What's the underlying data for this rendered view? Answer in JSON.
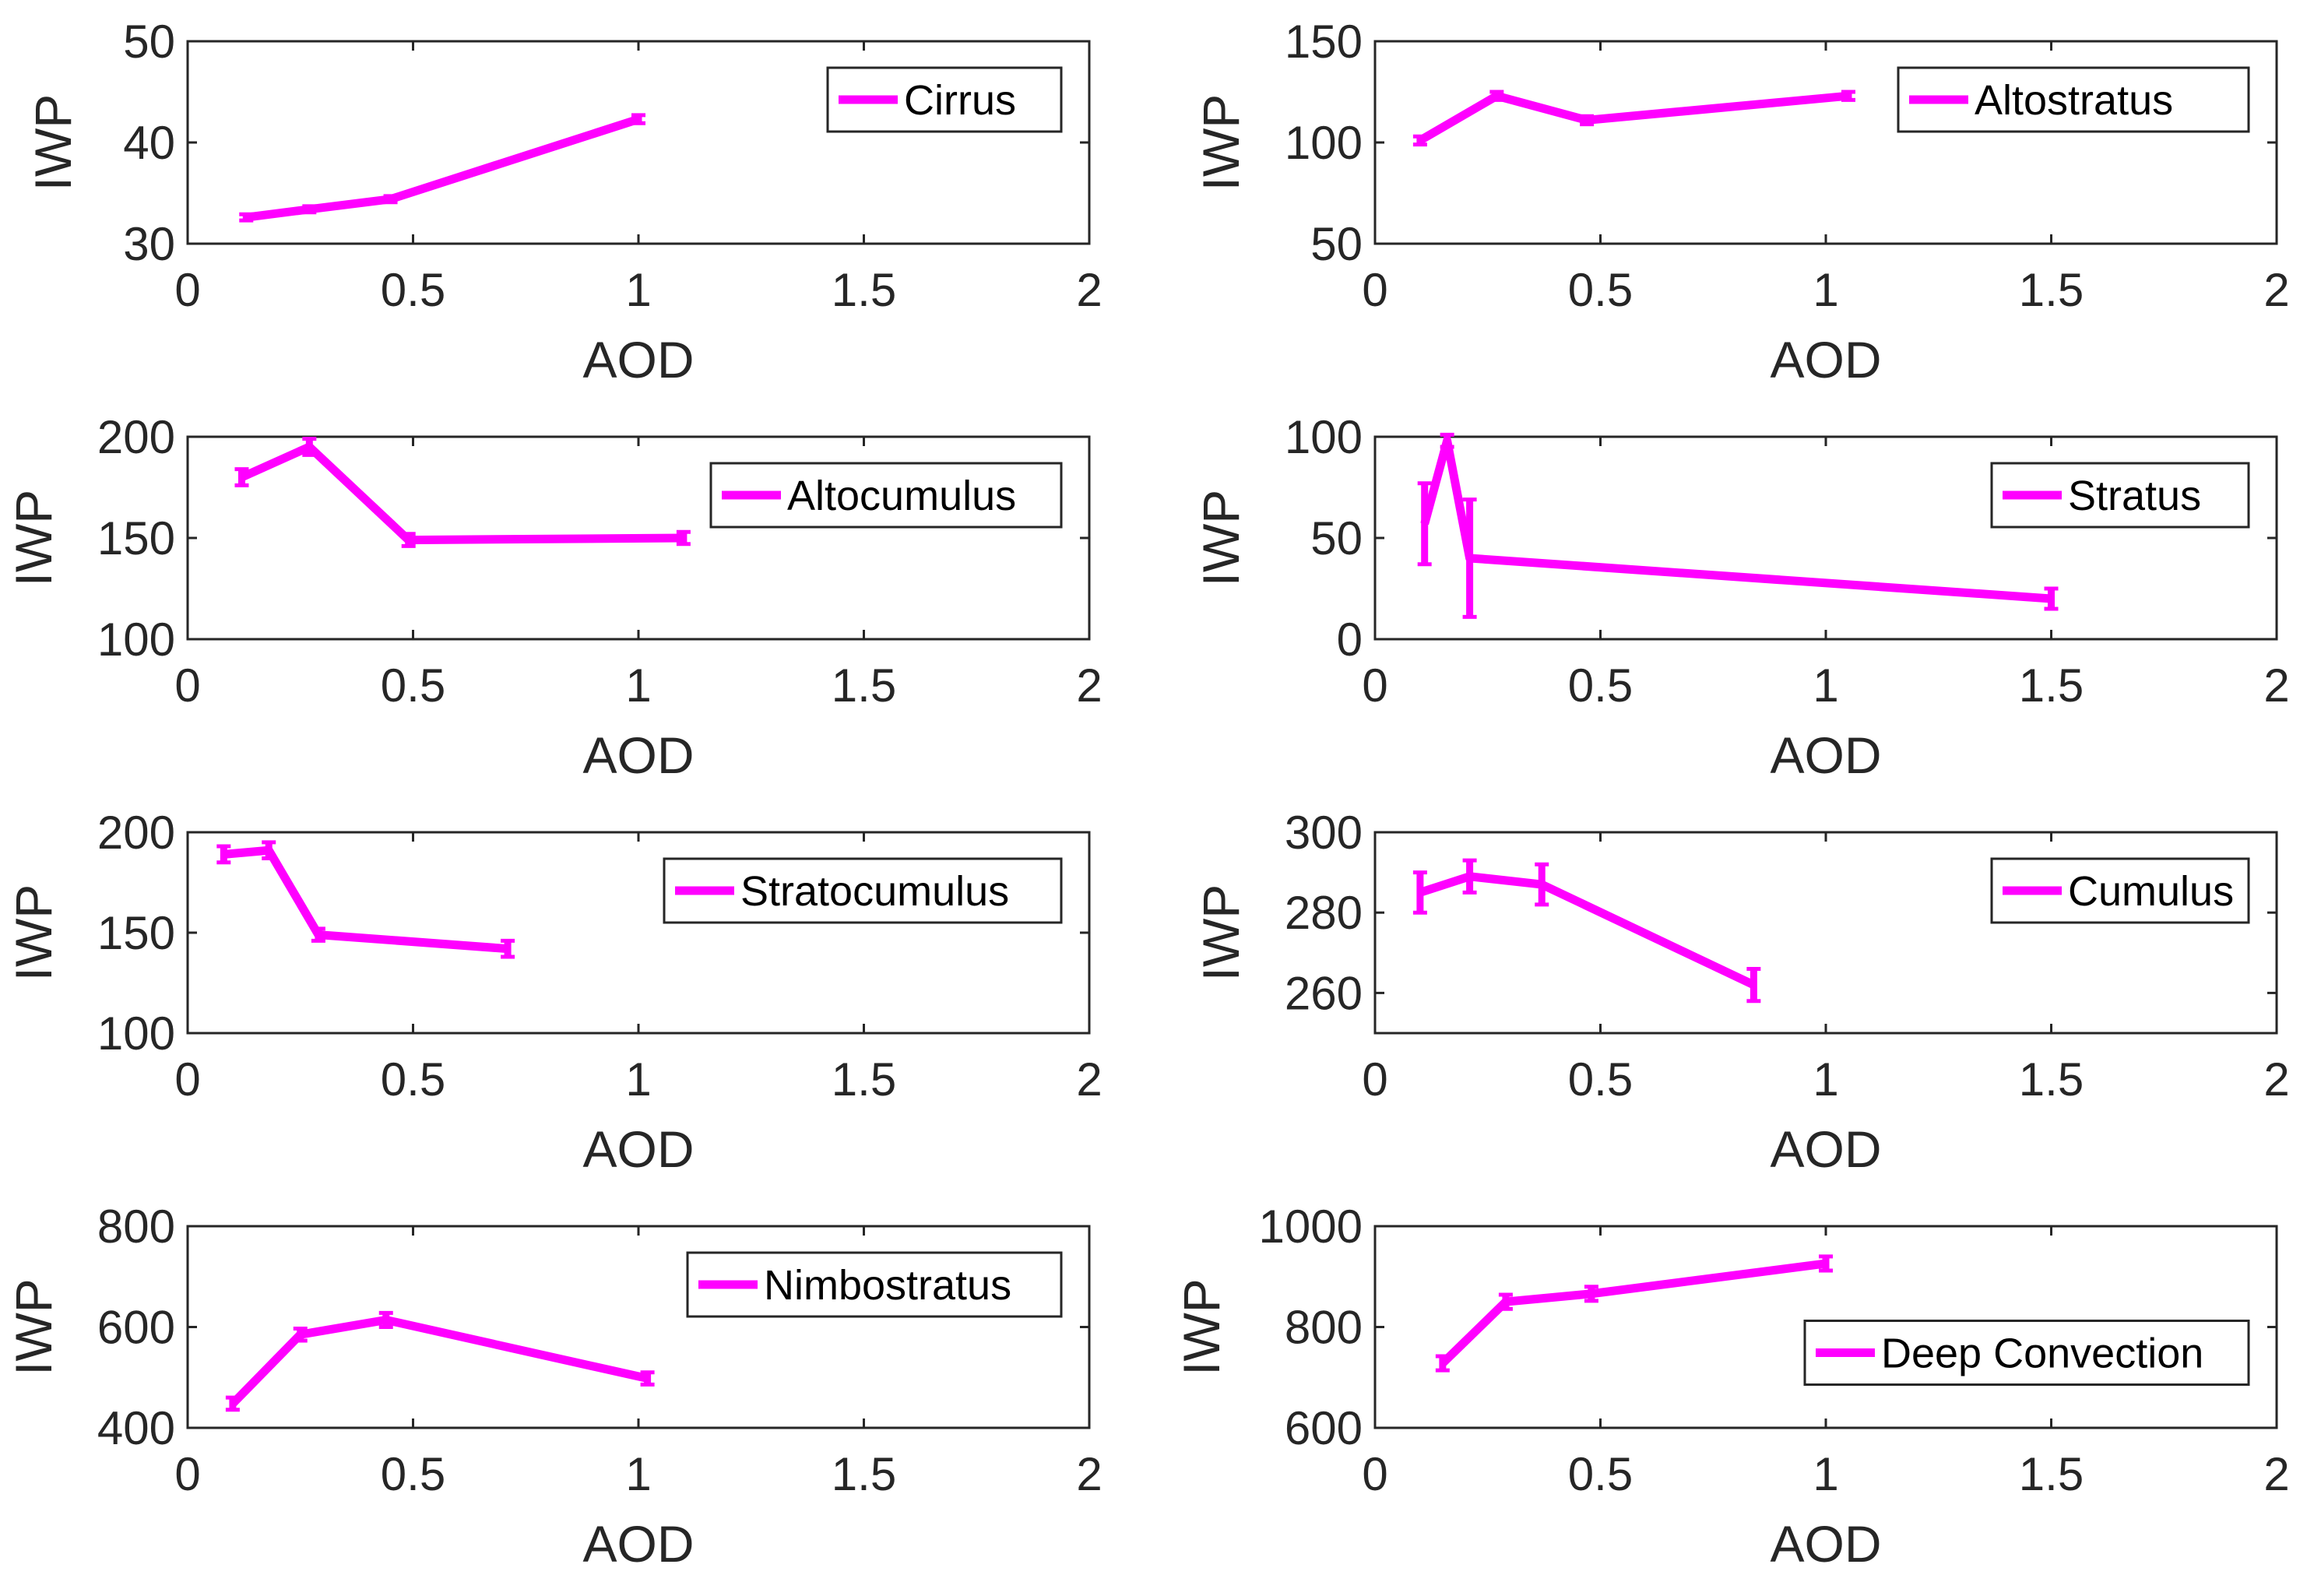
{
  "chart_data": [
    {
      "type": "line",
      "title": "",
      "legend": "Cirrus",
      "legend_position": "top-right",
      "xlabel": "AOD",
      "ylabel": "IWP",
      "xlim": [
        0,
        2
      ],
      "ylim": [
        30,
        50
      ],
      "xticks": [
        "0",
        "0.5",
        "1",
        "1.5",
        "2"
      ],
      "yticks": [
        "30",
        "40",
        "50"
      ],
      "x": [
        0.13,
        0.27,
        0.45,
        1.0
      ],
      "y": [
        32.6,
        33.4,
        34.4,
        42.3
      ],
      "err": [
        0.3,
        0.3,
        0.3,
        0.4
      ]
    },
    {
      "type": "line",
      "title": "",
      "legend": "Altostratus",
      "legend_position": "top-right",
      "xlabel": "AOD",
      "ylabel": "IWP",
      "xlim": [
        0,
        2
      ],
      "ylim": [
        50,
        150
      ],
      "xticks": [
        "0",
        "0.5",
        "1",
        "1.5",
        "2"
      ],
      "yticks": [
        "50",
        "100",
        "150"
      ],
      "x": [
        0.1,
        0.27,
        0.47,
        1.05
      ],
      "y": [
        101,
        123,
        111,
        123
      ],
      "err": [
        2,
        2,
        2,
        2
      ]
    },
    {
      "type": "line",
      "title": "",
      "legend": "Altocumulus",
      "legend_position": "top-right",
      "xlabel": "AOD",
      "ylabel": "IWP",
      "xlim": [
        0,
        2
      ],
      "ylim": [
        100,
        200
      ],
      "xticks": [
        "0",
        "0.5",
        "1",
        "1.5",
        "2"
      ],
      "yticks": [
        "100",
        "150",
        "200"
      ],
      "x": [
        0.12,
        0.27,
        0.49,
        1.1
      ],
      "y": [
        180,
        195,
        149,
        150
      ],
      "err": [
        4,
        4,
        3,
        3
      ]
    },
    {
      "type": "line",
      "title": "",
      "legend": "Stratus",
      "legend_position": "top-right",
      "xlabel": "AOD",
      "ylabel": "IWP",
      "xlim": [
        0,
        2
      ],
      "ylim": [
        0,
        100
      ],
      "xticks": [
        "0",
        "0.5",
        "1",
        "1.5",
        "2"
      ],
      "yticks": [
        "0",
        "50",
        "100"
      ],
      "x": [
        0.11,
        0.16,
        0.21,
        1.5
      ],
      "y": [
        57,
        98,
        40,
        20
      ],
      "err": [
        20,
        3,
        29,
        5
      ]
    },
    {
      "type": "line",
      "title": "",
      "legend": "Stratocumulus",
      "legend_position": "top-right",
      "xlabel": "AOD",
      "ylabel": "IWP",
      "xlim": [
        0,
        2
      ],
      "ylim": [
        100,
        200
      ],
      "xticks": [
        "0",
        "0.5",
        "1",
        "1.5",
        "2"
      ],
      "yticks": [
        "100",
        "150",
        "200"
      ],
      "x": [
        0.08,
        0.18,
        0.29,
        0.71
      ],
      "y": [
        189,
        191,
        149,
        142
      ],
      "err": [
        4,
        4,
        3,
        4
      ]
    },
    {
      "type": "line",
      "title": "",
      "legend": "Cumulus",
      "legend_position": "top-right",
      "xlabel": "AOD",
      "ylabel": "IWP",
      "xlim": [
        0,
        2
      ],
      "ylim": [
        250,
        300
      ],
      "xticks": [
        "0",
        "0.5",
        "1",
        "1.5",
        "2"
      ],
      "yticks": [
        "260",
        "280",
        "300"
      ],
      "x": [
        0.1,
        0.21,
        0.37,
        0.84
      ],
      "y": [
        285,
        289,
        287,
        262
      ],
      "err": [
        5,
        4,
        5,
        4
      ]
    },
    {
      "type": "line",
      "title": "",
      "legend": "Nimbostratus",
      "legend_position": "top-right",
      "xlabel": "AOD",
      "ylabel": "IWP",
      "xlim": [
        0,
        2
      ],
      "ylim": [
        400,
        800
      ],
      "xticks": [
        "0",
        "0.5",
        "1",
        "1.5",
        "2"
      ],
      "yticks": [
        "400",
        "600",
        "800"
      ],
      "x": [
        0.1,
        0.25,
        0.44,
        1.02
      ],
      "y": [
        448,
        585,
        614,
        498
      ],
      "err": [
        12,
        12,
        14,
        12
      ]
    },
    {
      "type": "line",
      "title": "",
      "legend": "Deep Convection",
      "legend_position": "right",
      "xlabel": "AOD",
      "ylabel": "IWP",
      "xlim": [
        0,
        2
      ],
      "ylim": [
        600,
        1000
      ],
      "xticks": [
        "0",
        "0.5",
        "1",
        "1.5",
        "2"
      ],
      "yticks": [
        "600",
        "800",
        "1000"
      ],
      "x": [
        0.15,
        0.29,
        0.48,
        1.0
      ],
      "y": [
        728,
        850,
        866,
        926
      ],
      "err": [
        14,
        14,
        14,
        14
      ]
    }
  ],
  "colors": {
    "series": "#ff00ff",
    "axis": "#262626"
  }
}
